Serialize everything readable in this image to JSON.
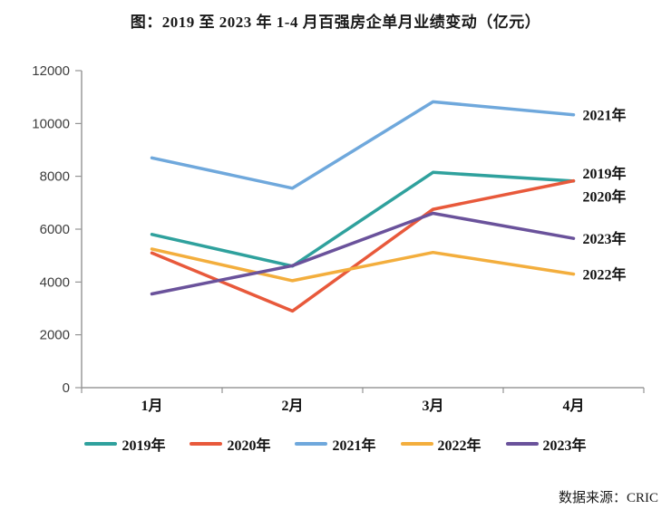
{
  "title": "图：2019 至 2023 年 1-4 月百强房企单月业绩变动（亿元）",
  "source": "数据来源：CRIC",
  "chart_data": {
    "type": "line",
    "categories": [
      "1月",
      "2月",
      "3月",
      "4月"
    ],
    "series": [
      {
        "id": "2019",
        "name": "2019年",
        "color": "#2FA19D",
        "values": [
          5800,
          4600,
          8150,
          7820
        ],
        "end_label_dy": -9
      },
      {
        "id": "2020",
        "name": "2020年",
        "color": "#E8593B",
        "values": [
          5100,
          2900,
          6750,
          7830
        ],
        "end_label_dy": 17
      },
      {
        "id": "2021",
        "name": "2021年",
        "color": "#6FA8DC",
        "values": [
          8700,
          7550,
          10820,
          10330
        ],
        "end_label_dy": 0
      },
      {
        "id": "2022",
        "name": "2022年",
        "color": "#F3AE3D",
        "values": [
          5250,
          4050,
          5120,
          4300
        ],
        "end_label_dy": 0
      },
      {
        "id": "2023",
        "name": "2023年",
        "color": "#6A529B",
        "values": [
          3550,
          4620,
          6600,
          5650
        ],
        "end_label_dy": 0
      }
    ],
    "ylim": [
      0,
      12000
    ],
    "ytick_step": 2000,
    "xlabel": "",
    "ylabel": "",
    "grid": false,
    "legend_position": "bottom",
    "end_labels": true,
    "axis_color": "#9a9a9a",
    "tick_color": "#7f7f7f"
  }
}
